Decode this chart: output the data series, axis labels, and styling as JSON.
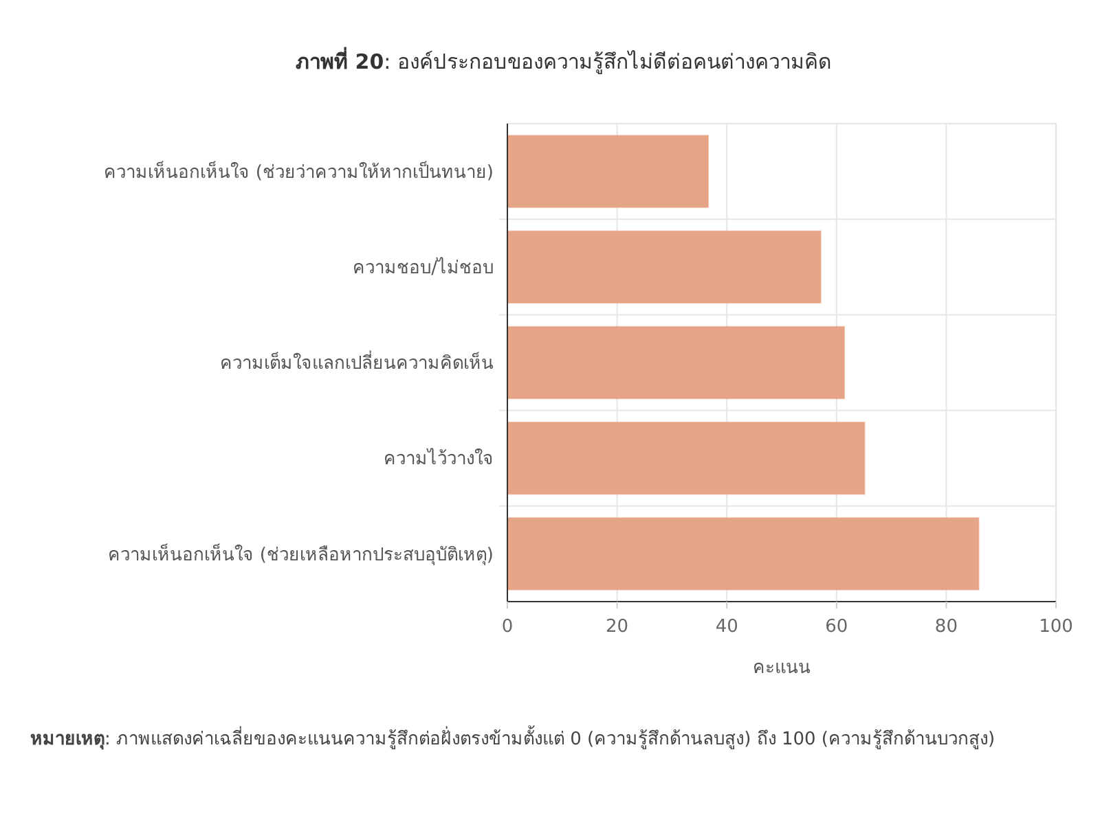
{
  "chart_data": {
    "type": "bar",
    "orientation": "horizontal",
    "title": "ภาพที่ 20: องค์ประกอบของความรู้สึกไม่ดีต่อคนต่างความคิด",
    "categories": [
      "ความเห็นอกเห็นใจ (ช่วยว่าความให้หากเป็นทนาย)",
      "ความชอบ/ไม่ชอบ",
      "ความเต็มใจแลกเปลี่ยนความคิดเห็น",
      "ความไว้วางใจ",
      "ความเห็นอกเห็นใจ (ช่วยเหลือหากประสบอุบัติเหตุ)"
    ],
    "values": [
      36.6,
      57.1,
      61.4,
      65.1,
      85.9
    ],
    "color": "#e5a07f",
    "xlim": [
      0,
      100
    ],
    "xticks": [
      0,
      20,
      40,
      60,
      80,
      100
    ],
    "xlabel": "คะแนน",
    "grid": true,
    "annotations": [
      "หมายเหตุ: ภาพแสดงค่าเฉลี่ยของคะแนนความรู้สึกต่อฝั่งตรงข้ามตั้งแต่ 0 (ความรู้สึกด้านลบสูง) ถึง 100 (ความรู้สึกด้านบวกสูง)"
    ]
  }
}
